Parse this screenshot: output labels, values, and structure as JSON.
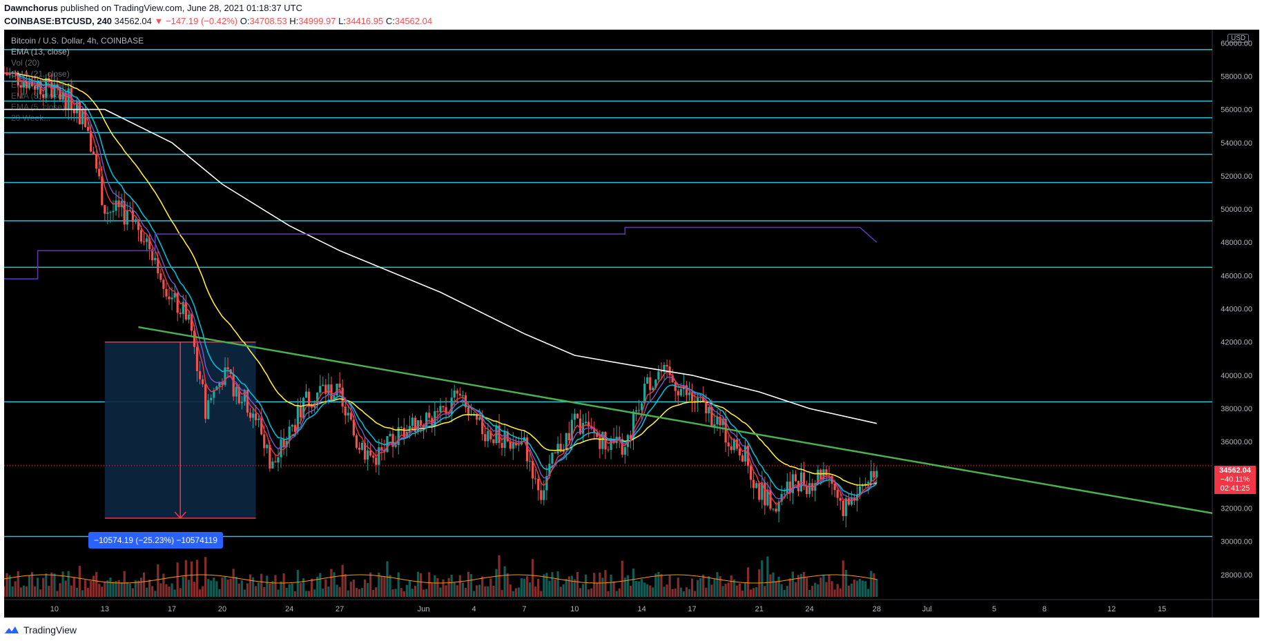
{
  "header": {
    "author": "Dawnchorus",
    "published_text": "published on TradingView.com, June 28, 2021 01:18:37 UTC",
    "symbol": "COINBASE:BTCUSD, 240",
    "price": "34562.04",
    "change": "▼ −147.19 (−0.42%)",
    "o_label": "O:",
    "o_value": "34708.53",
    "h_label": "H:",
    "h_value": "34999.97",
    "l_label": "L:",
    "l_value": "34416.95",
    "c_label": "C:",
    "c_value": "34562.04"
  },
  "legend": {
    "title": "Bitcoin / U.S. Dollar, 4h, COINBASE",
    "ema13": "EMA (13, close)",
    "vol": "Vol (20)",
    "sma": "SMA (21, close)",
    "ema200": "EMA (200, close)",
    "ema_other": "EMA (8, close)",
    "ema_other2": "EMA (5, close)",
    "weekly": "20 Week..."
  },
  "price_axis": {
    "currency_badge": "USD",
    "ticks": [
      "60000.00",
      "58000.00",
      "56000.00",
      "54000.00",
      "52000.00",
      "50000.00",
      "48000.00",
      "46000.00",
      "44000.00",
      "42000.00",
      "40000.00",
      "38000.00",
      "36000.00",
      "34000.00",
      "32000.00",
      "30000.00",
      "28000.00"
    ]
  },
  "price_label": {
    "price": "34562.04",
    "pct": "−40.11%",
    "countdown": "02:41:25"
  },
  "time_axis": {
    "ticks": [
      "10",
      "13",
      "17",
      "20",
      "24",
      "27",
      "Jun",
      "4",
      "7",
      "10",
      "14",
      "17",
      "21",
      "24",
      "28",
      "Jul",
      "5",
      "8",
      "12",
      "15"
    ]
  },
  "measure_label": "−10574.19 (−25.23%) −10574119",
  "footer": {
    "brand": "TradingView"
  },
  "colors": {
    "background": "#000000",
    "horizontal_levels": "#26c6da",
    "trendline": "#4caf50",
    "ema200": "#ffffff",
    "sma_yellow": "#ffeb3b",
    "ema_cyan": "#00bcd4",
    "ema_red": "#f23645",
    "ema_purple": "#7e57c2",
    "weekly_line": "#5e35b1",
    "candle_up": "#26a69a",
    "candle_down": "#ef5350",
    "price_label_bg": "#f23645",
    "measure_bg": "#2962ff"
  },
  "chart_data": {
    "type": "candlestick",
    "title": "Bitcoin / U.S. Dollar, 4h, COINBASE",
    "y_unit": "USD",
    "ylim": [
      26500,
      60800
    ],
    "x_range": [
      "2021-05-07",
      "2021-07-18"
    ],
    "horizontal_levels": [
      59600,
      57700,
      56500,
      55500,
      54600,
      53300,
      51600,
      49300,
      46500,
      38400,
      30300
    ],
    "trendline": {
      "from": {
        "date": "2021-05-15",
        "price": 42900
      },
      "to": {
        "date": "2021-07-18",
        "price": 31700
      }
    },
    "last_close": 34562.04,
    "price_path": [
      {
        "d": "2021-05-07",
        "p": 58200
      },
      {
        "d": "2021-05-09",
        "p": 57500
      },
      {
        "d": "2021-05-11",
        "p": 56500
      },
      {
        "d": "2021-05-12",
        "p": 55000
      },
      {
        "d": "2021-05-13",
        "p": 50000
      },
      {
        "d": "2021-05-14",
        "p": 49800
      },
      {
        "d": "2021-05-15",
        "p": 49000
      },
      {
        "d": "2021-05-16",
        "p": 47200
      },
      {
        "d": "2021-05-17",
        "p": 44500
      },
      {
        "d": "2021-05-18",
        "p": 43500
      },
      {
        "d": "2021-05-19",
        "p": 38000
      },
      {
        "d": "2021-05-20",
        "p": 40000
      },
      {
        "d": "2021-05-21",
        "p": 39000
      },
      {
        "d": "2021-05-22",
        "p": 37500
      },
      {
        "d": "2021-05-23",
        "p": 34500
      },
      {
        "d": "2021-05-24",
        "p": 36500
      },
      {
        "d": "2021-05-25",
        "p": 38500
      },
      {
        "d": "2021-05-26",
        "p": 39200
      },
      {
        "d": "2021-05-27",
        "p": 38800
      },
      {
        "d": "2021-05-28",
        "p": 36000
      },
      {
        "d": "2021-05-29",
        "p": 35000
      },
      {
        "d": "2021-05-30",
        "p": 35800
      },
      {
        "d": "2021-05-31",
        "p": 37000
      },
      {
        "d": "2021-06-02",
        "p": 37500
      },
      {
        "d": "2021-06-03",
        "p": 38800
      },
      {
        "d": "2021-06-04",
        "p": 37000
      },
      {
        "d": "2021-06-06",
        "p": 36000
      },
      {
        "d": "2021-06-07",
        "p": 35800
      },
      {
        "d": "2021-06-08",
        "p": 33000
      },
      {
        "d": "2021-06-09",
        "p": 35500
      },
      {
        "d": "2021-06-10",
        "p": 37000
      },
      {
        "d": "2021-06-12",
        "p": 36000
      },
      {
        "d": "2021-06-13",
        "p": 35500
      },
      {
        "d": "2021-06-14",
        "p": 39000
      },
      {
        "d": "2021-06-15",
        "p": 40200
      },
      {
        "d": "2021-06-16",
        "p": 39500
      },
      {
        "d": "2021-06-17",
        "p": 38500
      },
      {
        "d": "2021-06-18",
        "p": 37800
      },
      {
        "d": "2021-06-19",
        "p": 36500
      },
      {
        "d": "2021-06-20",
        "p": 35500
      },
      {
        "d": "2021-06-21",
        "p": 33000
      },
      {
        "d": "2021-06-22",
        "p": 32500
      },
      {
        "d": "2021-06-23",
        "p": 33800
      },
      {
        "d": "2021-06-24",
        "p": 33500
      },
      {
        "d": "2021-06-25",
        "p": 34500
      },
      {
        "d": "2021-06-26",
        "p": 32000
      },
      {
        "d": "2021-06-27",
        "p": 33200
      },
      {
        "d": "2021-06-28",
        "p": 34562
      }
    ],
    "ema200_path": [
      {
        "d": "2021-05-07",
        "p": 56000
      },
      {
        "d": "2021-05-13",
        "p": 56000
      },
      {
        "d": "2021-05-17",
        "p": 54000
      },
      {
        "d": "2021-05-20",
        "p": 51500
      },
      {
        "d": "2021-05-24",
        "p": 49000
      },
      {
        "d": "2021-05-27",
        "p": 47500
      },
      {
        "d": "2021-06-02",
        "p": 45000
      },
      {
        "d": "2021-06-07",
        "p": 42500
      },
      {
        "d": "2021-06-10",
        "p": 41200
      },
      {
        "d": "2021-06-14",
        "p": 40500
      },
      {
        "d": "2021-06-17",
        "p": 40000
      },
      {
        "d": "2021-06-21",
        "p": 39000
      },
      {
        "d": "2021-06-24",
        "p": 38000
      },
      {
        "d": "2021-06-28",
        "p": 37100
      }
    ],
    "weekly_path": [
      {
        "d": "2021-05-07",
        "p": 45800
      },
      {
        "d": "2021-05-09",
        "p": 45800
      },
      {
        "d": "2021-05-09",
        "p": 47500
      },
      {
        "d": "2021-05-16",
        "p": 47500
      },
      {
        "d": "2021-05-16",
        "p": 48500
      },
      {
        "d": "2021-06-13",
        "p": 48500
      },
      {
        "d": "2021-06-13",
        "p": 48900
      },
      {
        "d": "2021-06-27",
        "p": 48900
      },
      {
        "d": "2021-06-28",
        "p": 48000
      }
    ],
    "measure": {
      "from_price": 42000,
      "to_price": 31400,
      "from_date": "2021-05-13",
      "to_date": "2021-05-22",
      "change": -10574.19,
      "change_pct": -25.23
    }
  }
}
